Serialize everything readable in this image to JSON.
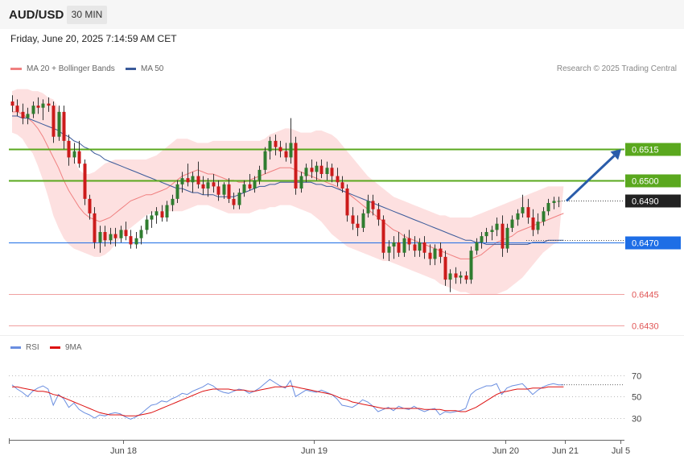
{
  "header": {
    "symbol": "AUD/USD",
    "timeframe": "30 MIN"
  },
  "datetime": "Friday, June 20, 2025 7:14:59 AM CET",
  "legend": {
    "ma20": {
      "label": "MA 20 + Bollinger Bands",
      "color": "#f08080"
    },
    "ma50": {
      "label": "MA 50",
      "color": "#3a5a9a"
    }
  },
  "credit": "Research © 2025 Trading Central",
  "rsi_legend": {
    "rsi": {
      "label": "RSI",
      "color": "#6a8ee0"
    },
    "ma9": {
      "label": "9MA",
      "color": "#dd1111"
    }
  },
  "chart_data": {
    "type": "candlestick",
    "symbol": "AUD/USD",
    "interval": "30 MIN",
    "x_ticks": [
      "Jun 18",
      "Jun 19",
      "Jun 20",
      "Jun 21",
      "Jul 5"
    ],
    "y_range": [
      0.6426,
      0.6545
    ],
    "levels": [
      {
        "value": 0.6515,
        "label": "0.6515",
        "color": "#5aa81e",
        "role": "resistance"
      },
      {
        "value": 0.65,
        "label": "0.6500",
        "color": "#5aa81e",
        "role": "resistance"
      },
      {
        "value": 0.649,
        "label": "0.6490",
        "color": "#222222",
        "role": "last"
      },
      {
        "value": 0.647,
        "label": "0.6470",
        "color": "#1e6ee6",
        "role": "pivot"
      },
      {
        "value": 0.6445,
        "label": "0.6445",
        "color": "#e05555",
        "role": "support"
      },
      {
        "value": 0.643,
        "label": "0.6430",
        "color": "#e05555",
        "role": "support"
      }
    ],
    "forecast_arrow": {
      "from": 0.649,
      "to": 0.6515
    },
    "candles": [
      [
        0.6538,
        0.6541,
        0.6533,
        0.6536
      ],
      [
        0.6536,
        0.6539,
        0.6531,
        0.6533
      ],
      [
        0.6533,
        0.6537,
        0.6527,
        0.653
      ],
      [
        0.653,
        0.6535,
        0.6527,
        0.6532
      ],
      [
        0.6532,
        0.6538,
        0.653,
        0.6536
      ],
      [
        0.6536,
        0.654,
        0.6532,
        0.6535
      ],
      [
        0.6535,
        0.6539,
        0.6529,
        0.6537
      ],
      [
        0.6537,
        0.654,
        0.6533,
        0.6536
      ],
      [
        0.6536,
        0.6538,
        0.6518,
        0.6521
      ],
      [
        0.6521,
        0.6536,
        0.6519,
        0.6533
      ],
      [
        0.6533,
        0.6536,
        0.6515,
        0.6519
      ],
      [
        0.6519,
        0.6522,
        0.6507,
        0.6511
      ],
      [
        0.6511,
        0.6518,
        0.6508,
        0.6514
      ],
      [
        0.6514,
        0.6519,
        0.6506,
        0.6508
      ],
      [
        0.6508,
        0.651,
        0.6488,
        0.6491
      ],
      [
        0.6491,
        0.6493,
        0.6481,
        0.6484
      ],
      [
        0.6484,
        0.6487,
        0.6467,
        0.647
      ],
      [
        0.647,
        0.6478,
        0.6465,
        0.6475
      ],
      [
        0.6475,
        0.6478,
        0.6468,
        0.6471
      ],
      [
        0.6471,
        0.6477,
        0.6469,
        0.6474
      ],
      [
        0.6474,
        0.6477,
        0.6468,
        0.6472
      ],
      [
        0.6472,
        0.6478,
        0.647,
        0.6476
      ],
      [
        0.6476,
        0.648,
        0.6471,
        0.6473
      ],
      [
        0.6473,
        0.6476,
        0.6467,
        0.6469
      ],
      [
        0.6469,
        0.6475,
        0.6467,
        0.6472
      ],
      [
        0.6472,
        0.6478,
        0.6469,
        0.6476
      ],
      [
        0.6476,
        0.6483,
        0.6474,
        0.6481
      ],
      [
        0.6481,
        0.6485,
        0.6477,
        0.6483
      ],
      [
        0.6483,
        0.6487,
        0.6479,
        0.6485
      ],
      [
        0.6485,
        0.6488,
        0.648,
        0.6482
      ],
      [
        0.6482,
        0.649,
        0.648,
        0.6488
      ],
      [
        0.6488,
        0.6493,
        0.6485,
        0.6491
      ],
      [
        0.6491,
        0.65,
        0.6489,
        0.6498
      ],
      [
        0.6498,
        0.6504,
        0.6494,
        0.6501
      ],
      [
        0.6501,
        0.6508,
        0.6497,
        0.6499
      ],
      [
        0.6499,
        0.6504,
        0.6494,
        0.6502
      ],
      [
        0.6502,
        0.6509,
        0.6496,
        0.6498
      ],
      [
        0.6498,
        0.6502,
        0.6493,
        0.6496
      ],
      [
        0.6496,
        0.6501,
        0.6492,
        0.6499
      ],
      [
        0.6499,
        0.6503,
        0.6494,
        0.6497
      ],
      [
        0.6497,
        0.65,
        0.649,
        0.6493
      ],
      [
        0.6493,
        0.6499,
        0.6491,
        0.6498
      ],
      [
        0.6498,
        0.6501,
        0.6489,
        0.6491
      ],
      [
        0.6491,
        0.6494,
        0.6486,
        0.6488
      ],
      [
        0.6488,
        0.6496,
        0.6486,
        0.6494
      ],
      [
        0.6494,
        0.65,
        0.6492,
        0.6498
      ],
      [
        0.6498,
        0.6503,
        0.6495,
        0.6496
      ],
      [
        0.6496,
        0.6502,
        0.6494,
        0.65
      ],
      [
        0.65,
        0.6507,
        0.6498,
        0.6505
      ],
      [
        0.6505,
        0.6516,
        0.6503,
        0.6514
      ],
      [
        0.6514,
        0.6521,
        0.651,
        0.6519
      ],
      [
        0.6519,
        0.6522,
        0.6512,
        0.6516
      ],
      [
        0.6516,
        0.6519,
        0.6511,
        0.6514
      ],
      [
        0.6514,
        0.6518,
        0.6509,
        0.6511
      ],
      [
        0.6511,
        0.653,
        0.6508,
        0.6518
      ],
      [
        0.6518,
        0.6521,
        0.6493,
        0.6496
      ],
      [
        0.6496,
        0.6504,
        0.6494,
        0.6502
      ],
      [
        0.6502,
        0.6508,
        0.6499,
        0.6506
      ],
      [
        0.6506,
        0.651,
        0.6501,
        0.6504
      ],
      [
        0.6504,
        0.6509,
        0.65,
        0.6507
      ],
      [
        0.6507,
        0.651,
        0.6501,
        0.6503
      ],
      [
        0.6503,
        0.6509,
        0.65,
        0.6506
      ],
      [
        0.6506,
        0.6508,
        0.6499,
        0.6502
      ],
      [
        0.6502,
        0.6506,
        0.6497,
        0.6499
      ],
      [
        0.6499,
        0.6502,
        0.6494,
        0.6496
      ],
      [
        0.6496,
        0.6498,
        0.648,
        0.6483
      ],
      [
        0.6483,
        0.6487,
        0.6476,
        0.6479
      ],
      [
        0.6479,
        0.6483,
        0.6473,
        0.6477
      ],
      [
        0.6477,
        0.6486,
        0.6475,
        0.6484
      ],
      [
        0.6484,
        0.6493,
        0.6482,
        0.649
      ],
      [
        0.649,
        0.6493,
        0.6483,
        0.6486
      ],
      [
        0.6486,
        0.6489,
        0.6478,
        0.6481
      ],
      [
        0.6481,
        0.6483,
        0.6462,
        0.6465
      ],
      [
        0.6465,
        0.6471,
        0.6461,
        0.6468
      ],
      [
        0.6468,
        0.6473,
        0.6462,
        0.647
      ],
      [
        0.647,
        0.6475,
        0.6463,
        0.6465
      ],
      [
        0.6465,
        0.6474,
        0.6463,
        0.6472
      ],
      [
        0.6472,
        0.6476,
        0.6466,
        0.6469
      ],
      [
        0.6469,
        0.6473,
        0.6463,
        0.6466
      ],
      [
        0.6466,
        0.6472,
        0.6463,
        0.647
      ],
      [
        0.647,
        0.6473,
        0.6462,
        0.6465
      ],
      [
        0.6465,
        0.6469,
        0.6459,
        0.6462
      ],
      [
        0.6462,
        0.6469,
        0.6459,
        0.6467
      ],
      [
        0.6467,
        0.647,
        0.646,
        0.6463
      ],
      [
        0.6463,
        0.6466,
        0.6449,
        0.6452
      ],
      [
        0.6452,
        0.6457,
        0.6446,
        0.6455
      ],
      [
        0.6455,
        0.6458,
        0.645,
        0.6453
      ],
      [
        0.6453,
        0.6456,
        0.645,
        0.6454
      ],
      [
        0.6454,
        0.6456,
        0.645,
        0.6452
      ],
      [
        0.6452,
        0.6468,
        0.645,
        0.6466
      ],
      [
        0.6466,
        0.6472,
        0.6464,
        0.647
      ],
      [
        0.647,
        0.6475,
        0.6467,
        0.6473
      ],
      [
        0.6473,
        0.6477,
        0.647,
        0.6475
      ],
      [
        0.6475,
        0.6478,
        0.6471,
        0.6476
      ],
      [
        0.6476,
        0.6482,
        0.6473,
        0.6479
      ],
      [
        0.6479,
        0.6483,
        0.6463,
        0.6467
      ],
      [
        0.6467,
        0.6479,
        0.6465,
        0.6477
      ],
      [
        0.6477,
        0.6483,
        0.6475,
        0.6481
      ],
      [
        0.6481,
        0.6486,
        0.6478,
        0.6484
      ],
      [
        0.6484,
        0.6493,
        0.6482,
        0.6487
      ],
      [
        0.6487,
        0.6491,
        0.6479,
        0.6482
      ],
      [
        0.6482,
        0.6486,
        0.6473,
        0.6476
      ],
      [
        0.6476,
        0.6484,
        0.6474,
        0.648
      ],
      [
        0.648,
        0.6487,
        0.6478,
        0.6485
      ],
      [
        0.6485,
        0.6491,
        0.6483,
        0.6489
      ],
      [
        0.6489,
        0.6492,
        0.6486,
        0.649
      ],
      [
        0.649,
        0.6492,
        0.6487,
        0.649
      ]
    ],
    "ma20": [
      0.6533,
      0.6533,
      0.6532,
      0.653,
      0.6528,
      0.6525,
      0.6521,
      0.6516,
      0.6511,
      0.6506,
      0.65,
      0.6495,
      0.6491,
      0.6487,
      0.6484,
      0.6482,
      0.6481,
      0.648,
      0.6481,
      0.6482,
      0.6484,
      0.6486,
      0.6488,
      0.649,
      0.6491,
      0.6492,
      0.6493,
      0.6493,
      0.6494,
      0.6495,
      0.6496,
      0.6498,
      0.65,
      0.6502,
      0.6503,
      0.6504,
      0.6505,
      0.6504,
      0.6503,
      0.6503,
      0.6502,
      0.6501,
      0.65,
      0.65,
      0.6499,
      0.6499,
      0.65,
      0.6501,
      0.6502,
      0.6503,
      0.6504,
      0.6505,
      0.6506,
      0.6506,
      0.6506,
      0.6505,
      0.6504,
      0.6503,
      0.6502,
      0.6501,
      0.65,
      0.6499,
      0.6498,
      0.6497,
      0.6495,
      0.6494,
      0.6492,
      0.649,
      0.6488,
      0.6486,
      0.6484,
      0.6482,
      0.648,
      0.6478,
      0.6476,
      0.6475,
      0.6473,
      0.6472,
      0.6471,
      0.647,
      0.6469,
      0.6468,
      0.6467,
      0.6466,
      0.6465,
      0.6464,
      0.6463,
      0.6462,
      0.6462,
      0.6462,
      0.6463,
      0.6464,
      0.6466,
      0.6468,
      0.647,
      0.6471,
      0.6472,
      0.6473,
      0.6475,
      0.6476,
      0.6477,
      0.6478,
      0.6479,
      0.648,
      0.6481,
      0.6482,
      0.6483,
      0.6484
    ],
    "ma50": [
      0.6531,
      0.6531,
      0.653,
      0.653,
      0.6529,
      0.6528,
      0.6527,
      0.6526,
      0.6525,
      0.6524,
      0.6522,
      0.6521,
      0.6519,
      0.6518,
      0.6516,
      0.6515,
      0.6513,
      0.6512,
      0.651,
      0.6509,
      0.6508,
      0.6507,
      0.6506,
      0.6505,
      0.6504,
      0.6503,
      0.6502,
      0.6501,
      0.65,
      0.6499,
      0.6498,
      0.6497,
      0.6496,
      0.6496,
      0.6495,
      0.6494,
      0.6494,
      0.6493,
      0.6493,
      0.6493,
      0.6492,
      0.6492,
      0.6492,
      0.6492,
      0.6493,
      0.6494,
      0.6495,
      0.6496,
      0.6497,
      0.6497,
      0.6498,
      0.6498,
      0.6499,
      0.6499,
      0.6499,
      0.6499,
      0.6499,
      0.6499,
      0.6499,
      0.6498,
      0.6498,
      0.6497,
      0.6497,
      0.6496,
      0.6495,
      0.6494,
      0.6493,
      0.6492,
      0.6491,
      0.649,
      0.6489,
      0.6488,
      0.6487,
      0.6486,
      0.6485,
      0.6484,
      0.6483,
      0.6482,
      0.6481,
      0.648,
      0.6479,
      0.6478,
      0.6477,
      0.6476,
      0.6475,
      0.6474,
      0.6473,
      0.6472,
      0.6471,
      0.6471,
      0.647,
      0.647,
      0.6469,
      0.6469,
      0.6469,
      0.6469,
      0.6469,
      0.6469,
      0.6469,
      0.6469,
      0.6469,
      0.647,
      0.647,
      0.647,
      0.6471,
      0.6471,
      0.6471,
      0.6471
    ],
    "bb_upper": [
      0.6543,
      0.6544,
      0.6544,
      0.6544,
      0.6543,
      0.6543,
      0.6542,
      0.654,
      0.6539,
      0.6535,
      0.6528,
      0.6518,
      0.651,
      0.6505,
      0.6503,
      0.6503,
      0.6504,
      0.6506,
      0.6508,
      0.6509,
      0.651,
      0.651,
      0.651,
      0.651,
      0.651,
      0.651,
      0.651,
      0.6511,
      0.6512,
      0.6514,
      0.6516,
      0.6518,
      0.652,
      0.652,
      0.652,
      0.6519,
      0.6518,
      0.6518,
      0.6518,
      0.6519,
      0.6519,
      0.6519,
      0.6519,
      0.6519,
      0.6519,
      0.6519,
      0.6519,
      0.6519,
      0.6519,
      0.652,
      0.6522,
      0.6523,
      0.6524,
      0.6525,
      0.6525,
      0.6524,
      0.6523,
      0.6523,
      0.6523,
      0.6524,
      0.6524,
      0.6523,
      0.6522,
      0.652,
      0.6517,
      0.6514,
      0.6511,
      0.6508,
      0.6505,
      0.6502,
      0.65,
      0.6498,
      0.6496,
      0.6494,
      0.6492,
      0.6491,
      0.649,
      0.6489,
      0.6488,
      0.6487,
      0.6486,
      0.6485,
      0.6484,
      0.6483,
      0.6483,
      0.6482,
      0.6482,
      0.6482,
      0.6482,
      0.6482,
      0.6483,
      0.6484,
      0.6485,
      0.6486,
      0.6487,
      0.6488,
      0.6489,
      0.649,
      0.6491,
      0.6492,
      0.6493,
      0.6494,
      0.6495,
      0.6496,
      0.6497,
      0.6497,
      0.6497,
      0.6497
    ],
    "bb_lower": [
      0.6523,
      0.6522,
      0.652,
      0.6516,
      0.6513,
      0.6507,
      0.65,
      0.6492,
      0.6483,
      0.6477,
      0.6472,
      0.6469,
      0.6467,
      0.6466,
      0.6465,
      0.6464,
      0.6463,
      0.6463,
      0.6464,
      0.6466,
      0.6469,
      0.6472,
      0.6475,
      0.6477,
      0.6479,
      0.6481,
      0.6483,
      0.6484,
      0.6485,
      0.6485,
      0.6485,
      0.6485,
      0.6485,
      0.6485,
      0.6486,
      0.6487,
      0.6488,
      0.6488,
      0.6488,
      0.6487,
      0.6486,
      0.6485,
      0.6484,
      0.6484,
      0.6484,
      0.6484,
      0.6484,
      0.6485,
      0.6486,
      0.6486,
      0.6487,
      0.6487,
      0.6488,
      0.6488,
      0.6488,
      0.6487,
      0.6486,
      0.6485,
      0.6484,
      0.6482,
      0.648,
      0.6477,
      0.6474,
      0.6472,
      0.647,
      0.6468,
      0.6467,
      0.6466,
      0.6465,
      0.6464,
      0.6463,
      0.6462,
      0.6461,
      0.6461,
      0.646,
      0.6459,
      0.6458,
      0.6457,
      0.6456,
      0.6455,
      0.6454,
      0.6453,
      0.6452,
      0.645,
      0.6449,
      0.6448,
      0.6447,
      0.6446,
      0.6446,
      0.6445,
      0.6445,
      0.6445,
      0.6445,
      0.6445,
      0.6445,
      0.6446,
      0.6447,
      0.6449,
      0.6451,
      0.6453,
      0.6456,
      0.6459,
      0.6462,
      0.6465,
      0.6467,
      0.6469,
      0.647,
      0.6471
    ],
    "rsi": {
      "ticks": [
        70,
        50,
        30
      ],
      "y_range": [
        18,
        78
      ],
      "rsi": [
        61,
        57,
        54,
        50,
        55,
        58,
        60,
        57,
        42,
        52,
        48,
        40,
        44,
        38,
        35,
        33,
        30,
        33,
        32,
        34,
        35,
        34,
        31,
        29,
        31,
        34,
        38,
        42,
        43,
        46,
        45,
        48,
        50,
        53,
        52,
        55,
        57,
        59,
        62,
        60,
        56,
        54,
        53,
        55,
        57,
        56,
        53,
        55,
        58,
        62,
        66,
        63,
        60,
        58,
        65,
        50,
        53,
        56,
        55,
        54,
        56,
        54,
        52,
        48,
        42,
        41,
        40,
        43,
        47,
        45,
        41,
        36,
        38,
        40,
        37,
        41,
        39,
        38,
        41,
        38,
        36,
        38,
        39,
        33,
        36,
        35,
        36,
        37,
        39,
        52,
        56,
        58,
        60,
        60,
        62,
        52,
        58,
        60,
        61,
        62,
        57,
        52,
        56,
        59,
        61,
        62,
        61,
        61
      ],
      "ma9": [
        59,
        59,
        58,
        57,
        56,
        55,
        55,
        54,
        52,
        51,
        49,
        47,
        45,
        43,
        41,
        39,
        37,
        35,
        34,
        33,
        33,
        33,
        32,
        32,
        32,
        33,
        34,
        35,
        37,
        39,
        41,
        43,
        45,
        47,
        49,
        51,
        53,
        55,
        56,
        57,
        57,
        57,
        57,
        56,
        56,
        56,
        55,
        55,
        56,
        57,
        58,
        59,
        59,
        59,
        60,
        59,
        58,
        57,
        56,
        55,
        54,
        53,
        52,
        50,
        48,
        47,
        45,
        44,
        43,
        42,
        41,
        40,
        39,
        39,
        39,
        39,
        39,
        39,
        39,
        39,
        38,
        38,
        38,
        38,
        37,
        37,
        37,
        36,
        36,
        38,
        40,
        43,
        46,
        49,
        52,
        54,
        55,
        56,
        57,
        57,
        57,
        58,
        58,
        58,
        59,
        59,
        59,
        59
      ]
    }
  }
}
